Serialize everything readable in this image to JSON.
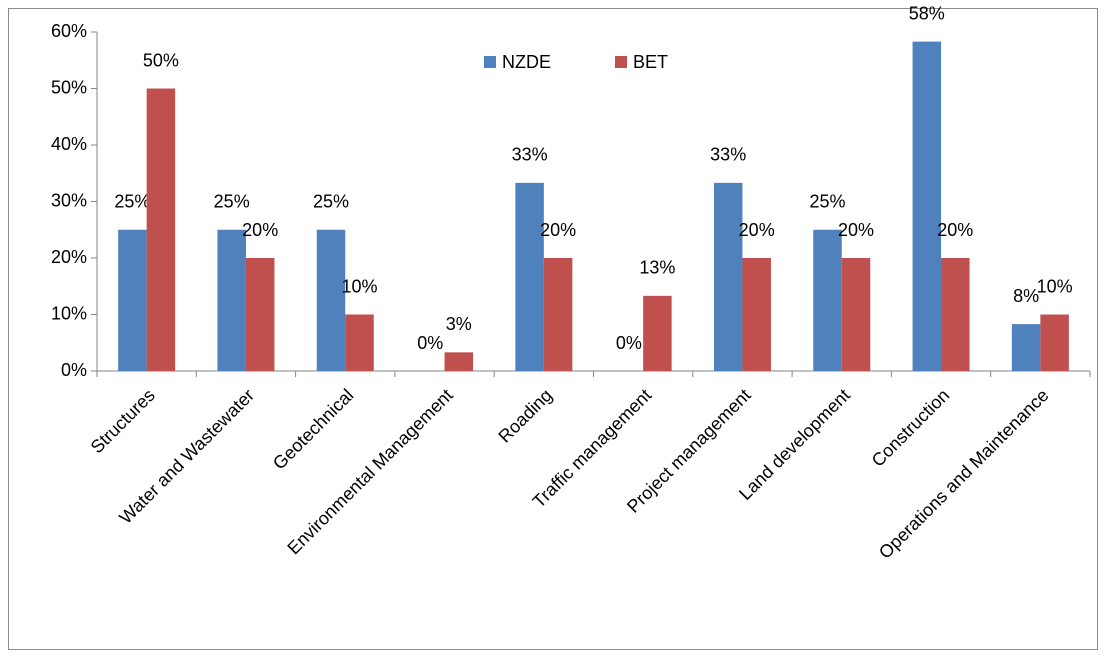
{
  "chart_data": {
    "type": "bar",
    "categories": [
      "Structures",
      "Water and Wastewater",
      "Geotechnical",
      "Environmental Management",
      "Roading",
      "Traffic management",
      "Project management",
      "Land development",
      "Construction",
      "Operations and Maintenance"
    ],
    "series": [
      {
        "name": "NZDE",
        "color": "#4f81bd",
        "values": [
          25,
          25,
          25,
          0,
          33.3,
          0,
          33.3,
          25,
          58.3,
          8.3
        ],
        "value_labels": [
          "25%",
          "25%",
          "25%",
          "0%",
          "33%",
          "0%",
          "33%",
          "25%",
          "58%",
          "8%"
        ]
      },
      {
        "name": "BET",
        "color": "#c0504d",
        "values": [
          50,
          20,
          10,
          3.3,
          20,
          13.3,
          20,
          20,
          20,
          10
        ],
        "value_labels": [
          "50%",
          "20%",
          "10%",
          "3%",
          "20%",
          "13%",
          "20%",
          "20%",
          "20%",
          "10%"
        ]
      }
    ],
    "ylim": [
      0,
      60
    ],
    "yticks": [
      {
        "value": 0,
        "label": "0%"
      },
      {
        "value": 10,
        "label": "10%"
      },
      {
        "value": 20,
        "label": "20%"
      },
      {
        "value": 30,
        "label": "30%"
      },
      {
        "value": 40,
        "label": "40%"
      },
      {
        "value": 50,
        "label": "50%"
      },
      {
        "value": 60,
        "label": "60%"
      }
    ],
    "legend": "top"
  }
}
